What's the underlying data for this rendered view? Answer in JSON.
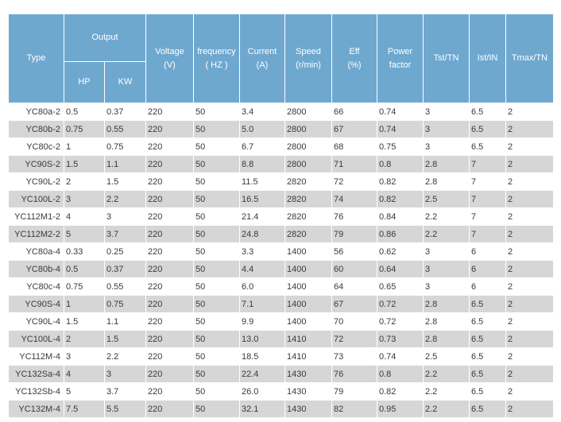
{
  "header": {
    "type": "Type",
    "output": "Output",
    "hp": "HP",
    "kw": "KW",
    "voltage": [
      "Voltage",
      "(V)"
    ],
    "frequency": [
      "frequency",
      "( HZ )"
    ],
    "current": [
      "Current",
      "(A)"
    ],
    "speed": [
      "Speed",
      "(r/min)"
    ],
    "eff": [
      "Eff",
      "(%)"
    ],
    "power_factor": [
      "Power",
      "factor"
    ],
    "tst": "Tst/TN",
    "ist": "Ist/IN",
    "tmax": "Tmax/TN"
  },
  "rows": [
    [
      "YC80a-2",
      "0.5",
      "0.37",
      "220",
      "50",
      "3.4",
      "2800",
      "66",
      "0.74",
      "3",
      "6.5",
      "2"
    ],
    [
      "YC80b-2",
      "0.75",
      "0.55",
      "220",
      "50",
      "5.0",
      "2800",
      "67",
      "0.74",
      "3",
      "6.5",
      "2"
    ],
    [
      "YC80c-2",
      "1",
      "0.75",
      "220",
      "50",
      "6.7",
      "2800",
      "68",
      "0.75",
      "3",
      "6.5",
      "2"
    ],
    [
      "YC90S-2",
      "1.5",
      "1.1",
      "220",
      "50",
      "8.8",
      "2800",
      "71",
      "0.8",
      "2.8",
      "7",
      "2"
    ],
    [
      "YC90L-2",
      "2",
      "1.5",
      "220",
      "50",
      "11.5",
      "2820",
      "72",
      "0.82",
      "2.8",
      "7",
      "2"
    ],
    [
      "YC100L-2",
      "3",
      "2.2",
      "220",
      "50",
      "16.5",
      "2820",
      "74",
      "0.82",
      "2.5",
      "7",
      "2"
    ],
    [
      "YC112M1-2",
      "4",
      "3",
      "220",
      "50",
      "21.4",
      "2820",
      "76",
      "0.84",
      "2.2",
      "7",
      "2"
    ],
    [
      "YC112M2-2",
      "5",
      "3.7",
      "220",
      "50",
      "24.8",
      "2820",
      "79",
      "0.86",
      "2.2",
      "7",
      "2"
    ],
    [
      "YC80a-4",
      "0.33",
      "0.25",
      "220",
      "50",
      "3.3",
      "1400",
      "56",
      "0.62",
      "3",
      "6",
      "2"
    ],
    [
      "YC80b-4",
      "0.5",
      "0.37",
      "220",
      "50",
      "4.4",
      "1400",
      "60",
      "0.64",
      "3",
      "6",
      "2"
    ],
    [
      "YC80c-4",
      "0.75",
      "0.55",
      "220",
      "50",
      "6.0",
      "1400",
      "64",
      "0.65",
      "3",
      "6",
      "2"
    ],
    [
      "YC90S-4",
      "1",
      "0.75",
      "220",
      "50",
      "7.1",
      "1400",
      "67",
      "0.72",
      "2.8",
      "6.5",
      "2"
    ],
    [
      "YC90L-4",
      "1.5",
      "1.1",
      "220",
      "50",
      "9.9",
      "1400",
      "70",
      "0.72",
      "2.8",
      "6.5",
      "2"
    ],
    [
      "YC100L-4",
      "2",
      "1.5",
      "220",
      "50",
      "13.0",
      "1410",
      "72",
      "0.73",
      "2.8",
      "6.5",
      "2"
    ],
    [
      "YC112M-4",
      "3",
      "2.2",
      "220",
      "50",
      "18.5",
      "1410",
      "73",
      "0.74",
      "2.5",
      "6.5",
      "2"
    ],
    [
      "YC132Sa-4",
      "4",
      "3",
      "220",
      "50",
      "22.4",
      "1430",
      "76",
      "0.8",
      "2.2",
      "6.5",
      "2"
    ],
    [
      "YC132Sb-4",
      "5",
      "3.7",
      "220",
      "50",
      "26.0",
      "1430",
      "79",
      "0.82",
      "2.2",
      "6.5",
      "2"
    ],
    [
      "YC132M-4",
      "7.5",
      "5.5",
      "220",
      "50",
      "32.1",
      "1430",
      "82",
      "0.95",
      "2.2",
      "6.5",
      "2"
    ]
  ],
  "colors": {
    "header_bg": "#6fa8cf",
    "header_text": "#ffffff",
    "stripe_bg": "#d6d6d6",
    "cell_text": "#3a3a3a"
  }
}
